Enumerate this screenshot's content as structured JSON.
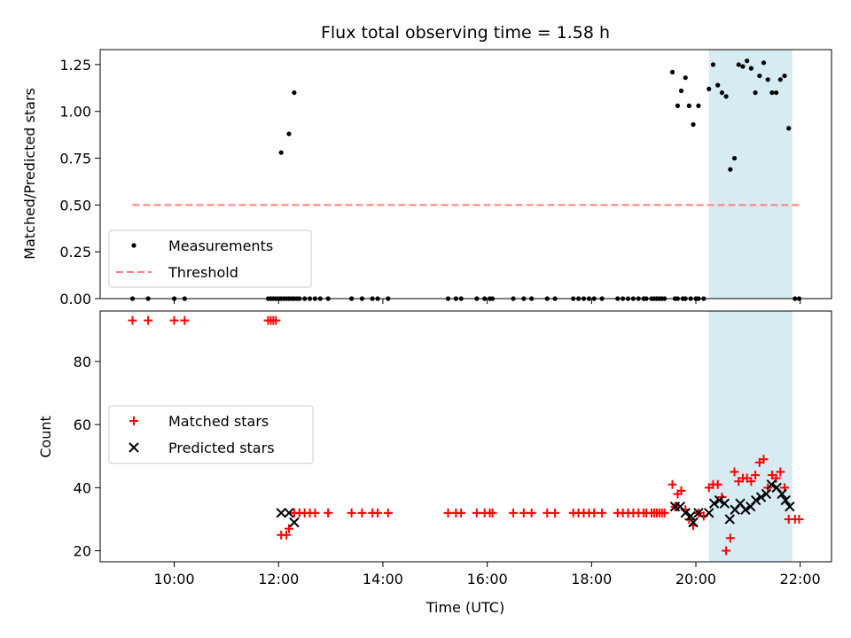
{
  "chart_data": [
    {
      "type": "scatter",
      "title": "Flux total observing time = 1.58 h",
      "ylabel": "Matched/Predicted stars",
      "xlabel": "",
      "xlim": [
        8.58,
        22.6
      ],
      "ylim": [
        0,
        1.33
      ],
      "yticks": [
        "0.00",
        "0.25",
        "0.50",
        "0.75",
        "1.00",
        "1.25"
      ],
      "xticks": [
        10,
        12,
        14,
        16,
        18,
        20,
        22
      ],
      "shaded_span": [
        20.25,
        21.85
      ],
      "legend": {
        "placement": "lower-left"
      },
      "series": [
        {
          "name": "Measurements",
          "kind": "scatter",
          "x": [
            9.2,
            9.5,
            10.0,
            10.2,
            11.8,
            11.85,
            11.9,
            11.95,
            12.0,
            12.05,
            12.1,
            12.15,
            12.2,
            12.25,
            12.3,
            12.35,
            12.4,
            12.5,
            12.6,
            12.7,
            12.8,
            12.95,
            13.4,
            13.6,
            13.8,
            13.9,
            14.1,
            15.25,
            15.4,
            15.5,
            15.8,
            15.95,
            16.05,
            16.1,
            16.5,
            16.7,
            16.85,
            17.15,
            17.3,
            17.65,
            17.75,
            17.85,
            17.95,
            18.05,
            18.2,
            18.5,
            18.6,
            18.7,
            18.8,
            18.9,
            19.0,
            19.05,
            19.15,
            19.2,
            19.25,
            19.3,
            19.35,
            19.4,
            19.6,
            19.65,
            19.75,
            19.8,
            19.9,
            20.0,
            20.05,
            20.15,
            12.05,
            12.2,
            12.3,
            19.55,
            19.65,
            19.72,
            19.8,
            19.87,
            19.95,
            20.05,
            20.25,
            20.33,
            20.42,
            20.5,
            20.58,
            20.66,
            20.74,
            20.82,
            20.9,
            20.98,
            21.06,
            21.14,
            21.22,
            21.3,
            21.38,
            21.46,
            21.54,
            21.62,
            21.7,
            21.78,
            21.9,
            21.98
          ],
          "y": [
            0,
            0,
            0,
            0,
            0,
            0,
            0,
            0,
            0,
            0,
            0,
            0,
            0,
            0,
            0,
            0,
            0,
            0,
            0,
            0,
            0,
            0,
            0,
            0,
            0,
            0,
            0,
            0,
            0,
            0,
            0,
            0,
            0,
            0,
            0,
            0,
            0,
            0,
            0,
            0,
            0,
            0,
            0,
            0,
            0,
            0,
            0,
            0,
            0,
            0,
            0,
            0,
            0,
            0,
            0,
            0,
            0,
            0,
            0,
            0,
            0,
            0,
            0,
            0,
            0,
            0,
            0.78,
            0.88,
            1.1,
            1.21,
            1.03,
            1.11,
            1.18,
            1.03,
            0.93,
            1.03,
            1.12,
            1.25,
            1.14,
            1.1,
            1.08,
            0.69,
            0.75,
            1.25,
            1.24,
            1.27,
            1.23,
            1.1,
            1.19,
            1.26,
            1.17,
            1.1,
            1.1,
            1.17,
            1.19,
            0.91,
            0,
            0
          ]
        },
        {
          "name": "Threshold",
          "kind": "line",
          "x": [
            9.2,
            22.0
          ],
          "y": [
            0.5,
            0.5
          ]
        }
      ]
    },
    {
      "type": "scatter",
      "title": "",
      "ylabel": "Count",
      "xlabel": "Time (UTC)",
      "xlim": [
        8.58,
        22.6
      ],
      "ylim": [
        16.5,
        96
      ],
      "yticks": [
        "20",
        "40",
        "60",
        "80"
      ],
      "xticks": [
        "10:00",
        "12:00",
        "14:00",
        "16:00",
        "18:00",
        "20:00",
        "22:00"
      ],
      "shaded_span": [
        20.25,
        21.85
      ],
      "legend": {
        "placement": "center-left"
      },
      "series": [
        {
          "name": "Matched stars",
          "kind": "plus",
          "x": [
            9.2,
            9.5,
            10.0,
            10.2,
            11.8,
            11.85,
            11.9,
            11.95,
            12.05,
            12.15,
            12.2,
            12.3,
            12.4,
            12.5,
            12.6,
            12.7,
            12.95,
            13.4,
            13.6,
            13.8,
            13.9,
            14.1,
            15.25,
            15.4,
            15.5,
            15.8,
            15.95,
            16.05,
            16.1,
            16.5,
            16.7,
            16.85,
            17.15,
            17.3,
            17.65,
            17.75,
            17.85,
            17.95,
            18.05,
            18.2,
            18.5,
            18.6,
            18.7,
            18.8,
            18.9,
            19.0,
            19.05,
            19.15,
            19.2,
            19.25,
            19.3,
            19.35,
            19.4,
            19.55,
            19.6,
            19.65,
            19.72,
            19.8,
            19.87,
            19.95,
            20.05,
            20.15,
            20.25,
            20.33,
            20.42,
            20.5,
            20.58,
            20.66,
            20.74,
            20.82,
            20.9,
            20.98,
            21.06,
            21.14,
            21.22,
            21.3,
            21.38,
            21.46,
            21.54,
            21.62,
            21.7,
            21.78,
            21.9,
            21.98
          ],
          "y": [
            93,
            93,
            93,
            93,
            93,
            93,
            93,
            93,
            25,
            25,
            27,
            32,
            32,
            32,
            32,
            32,
            32,
            32,
            32,
            32,
            32,
            32,
            32,
            32,
            32,
            32,
            32,
            32,
            32,
            32,
            32,
            32,
            32,
            32,
            32,
            32,
            32,
            32,
            32,
            32,
            32,
            32,
            32,
            32,
            32,
            32,
            32,
            32,
            32,
            32,
            32,
            32,
            32,
            41,
            34,
            38,
            39,
            33,
            30,
            28,
            32,
            31,
            40,
            41,
            41,
            37,
            20,
            24,
            45,
            42,
            43,
            43,
            42,
            44,
            48,
            49,
            40,
            44,
            43,
            45,
            40,
            30,
            30,
            30
          ],
          "color": "#ff0000"
        },
        {
          "name": "Predicted stars",
          "kind": "x",
          "x": [
            12.05,
            12.2,
            12.3,
            19.6,
            19.7,
            19.8,
            19.9,
            19.95,
            20.05,
            20.25,
            20.35,
            20.45,
            20.55,
            20.65,
            20.75,
            20.85,
            20.95,
            21.05,
            21.15,
            21.25,
            21.35,
            21.45,
            21.55,
            21.65,
            21.72,
            21.8
          ],
          "y": [
            32,
            32,
            29,
            34,
            34,
            32,
            31,
            29,
            32,
            32,
            35,
            36,
            35,
            30,
            33,
            35,
            33,
            34,
            36,
            37,
            38,
            41,
            40,
            38,
            36,
            34
          ],
          "color": "#000000"
        }
      ]
    }
  ]
}
